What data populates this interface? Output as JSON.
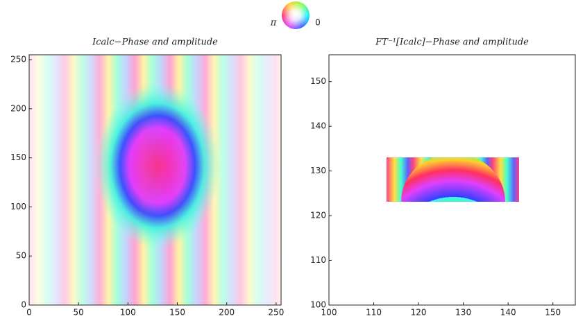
{
  "legend": {
    "labels": [
      "π",
      "0"
    ]
  },
  "chart_data": [
    {
      "type": "image",
      "title": "Icalc−Phase and amplitude",
      "xlim": [
        0,
        255
      ],
      "ylim": [
        0,
        255
      ],
      "xticks": [
        0,
        50,
        100,
        150,
        200,
        250
      ],
      "yticks": [
        0,
        50,
        100,
        150,
        200,
        250
      ]
    },
    {
      "type": "image",
      "title": "FT⁻¹[Icalc]−Phase and amplitude",
      "xlim": [
        100,
        155
      ],
      "ylim": [
        100,
        156
      ],
      "xticks": [
        100,
        110,
        120,
        130,
        140,
        150
      ],
      "yticks": [
        100,
        110,
        120,
        130,
        140,
        150
      ]
    }
  ]
}
